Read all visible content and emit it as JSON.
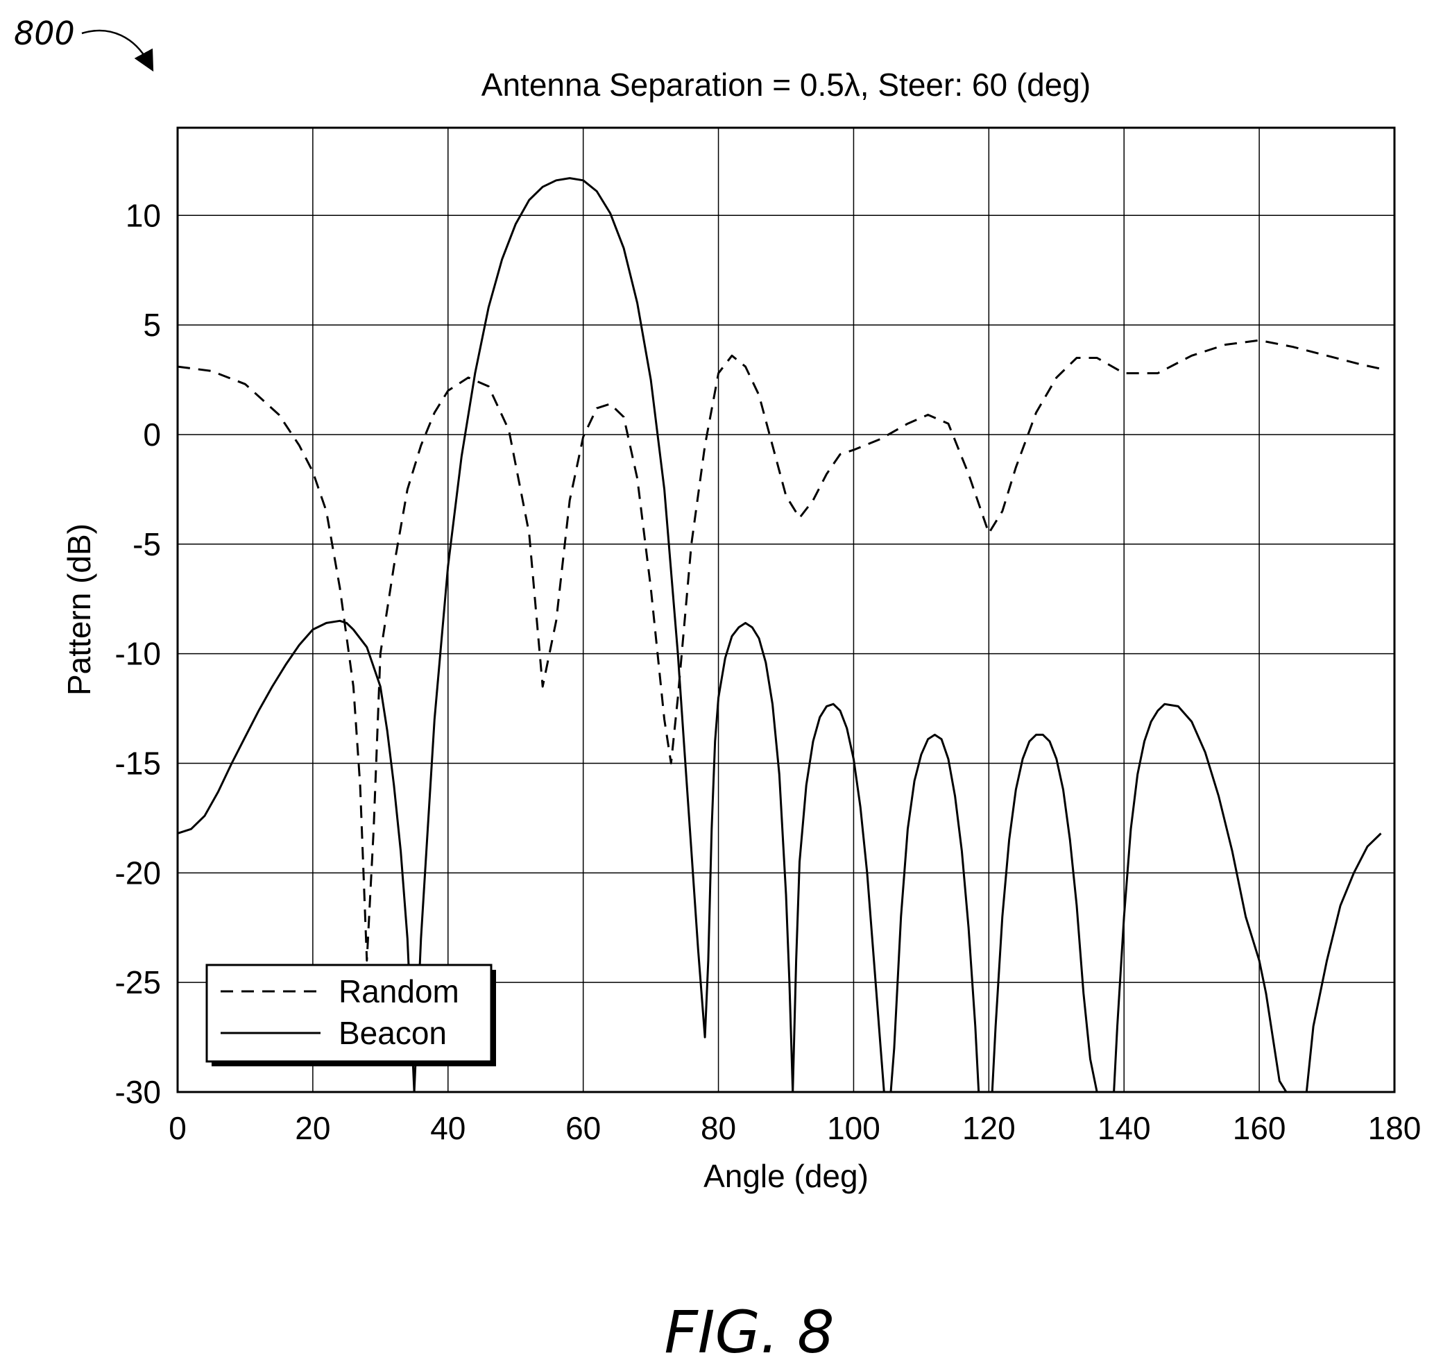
{
  "figure": {
    "ref_number": "800",
    "caption": "FIG. 8"
  },
  "chart_data": {
    "type": "line",
    "title": "Antenna Separation = 0.5λ, Steer: 60 (deg)",
    "xlabel": "Angle (deg)",
    "ylabel": "Pattern (dB)",
    "xlim": [
      0,
      180
    ],
    "ylim": [
      -30,
      14
    ],
    "xticks": [
      0,
      20,
      40,
      60,
      80,
      100,
      120,
      140,
      160,
      180
    ],
    "yticks": [
      10,
      5,
      0,
      -5,
      -10,
      -15,
      -20,
      -25,
      -30
    ],
    "grid": true,
    "legend": {
      "placement": "lower-left",
      "entries": [
        {
          "name": "Random",
          "style": "dashed"
        },
        {
          "name": "Beacon",
          "style": "solid"
        }
      ]
    },
    "series": [
      {
        "name": "Random",
        "style": "dashed",
        "x": [
          0,
          5,
          10,
          15,
          18,
          20,
          22,
          24,
          26,
          27,
          28,
          29,
          30,
          32,
          34,
          36,
          38,
          40,
          43,
          46,
          49,
          52,
          54,
          56,
          58,
          60,
          62,
          64,
          66,
          68,
          70,
          72,
          73,
          74,
          76,
          78,
          80,
          82,
          84,
          86,
          88,
          90,
          92,
          94,
          96,
          98,
          100,
          104,
          108,
          111,
          114,
          117,
          120,
          122,
          124,
          127,
          130,
          133,
          136,
          140,
          145,
          150,
          155,
          160,
          165,
          170,
          175,
          178
        ],
        "y": [
          3.1,
          2.9,
          2.3,
          0.9,
          -0.5,
          -1.7,
          -3.5,
          -7.0,
          -11.5,
          -16.0,
          -24.0,
          -18.0,
          -10.0,
          -6.0,
          -2.5,
          -0.5,
          1.0,
          2.0,
          2.6,
          2.2,
          0.2,
          -4.5,
          -11.5,
          -8.5,
          -3.0,
          -0.1,
          1.2,
          1.4,
          0.8,
          -2.0,
          -7.0,
          -13.0,
          -15.0,
          -12.0,
          -5.0,
          -0.5,
          2.8,
          3.6,
          3.1,
          1.8,
          -0.5,
          -2.8,
          -3.8,
          -3.0,
          -1.8,
          -0.9,
          -0.7,
          -0.2,
          0.5,
          0.9,
          0.5,
          -1.8,
          -4.5,
          -3.5,
          -1.5,
          1.0,
          2.6,
          3.5,
          3.5,
          2.8,
          2.8,
          3.6,
          4.1,
          4.3,
          4.0,
          3.6,
          3.2,
          3.0
        ]
      },
      {
        "name": "Beacon",
        "style": "solid",
        "x": [
          0,
          2,
          4,
          6,
          8,
          10,
          12,
          14,
          16,
          18,
          20,
          22,
          24,
          25,
          26,
          28,
          30,
          31,
          32,
          33,
          34,
          35,
          36,
          38,
          40,
          42,
          44,
          46,
          48,
          50,
          52,
          54,
          56,
          58,
          60,
          62,
          64,
          66,
          68,
          70,
          72,
          74,
          75,
          76,
          77,
          78,
          78.5,
          79,
          79.5,
          80,
          81,
          82,
          83,
          84,
          85,
          86,
          87,
          88,
          89,
          90,
          90.5,
          91,
          91.5,
          92,
          93,
          94,
          95,
          96,
          97,
          98,
          99,
          100,
          101,
          102,
          103,
          104,
          104.5,
          105,
          105.5,
          106,
          107,
          108,
          109,
          110,
          111,
          112,
          113,
          114,
          115,
          116,
          117,
          118,
          118.5,
          119,
          120,
          120.5,
          121,
          122,
          123,
          124,
          125,
          126,
          127,
          128,
          129,
          130,
          131,
          132,
          133,
          134,
          135,
          136,
          136.5,
          137,
          138,
          138.5,
          139,
          140,
          141,
          142,
          143,
          144,
          145,
          146,
          148,
          150,
          152,
          154,
          156,
          158,
          160,
          161,
          162,
          163,
          164,
          165,
          166,
          167,
          168,
          170,
          172,
          174,
          176,
          178
        ],
        "y": [
          -18.2,
          -18.0,
          -17.4,
          -16.3,
          -15.0,
          -13.8,
          -12.6,
          -11.5,
          -10.5,
          -9.6,
          -8.9,
          -8.6,
          -8.5,
          -8.6,
          -8.9,
          -9.7,
          -11.5,
          -13.5,
          -16.0,
          -19.0,
          -23.0,
          -30.0,
          -23.0,
          -13.0,
          -6.0,
          -1.0,
          2.8,
          5.8,
          8.0,
          9.6,
          10.7,
          11.3,
          11.6,
          11.7,
          11.6,
          11.1,
          10.1,
          8.5,
          6.0,
          2.5,
          -2.5,
          -10.0,
          -14.5,
          -19.0,
          -23.5,
          -27.5,
          -24.0,
          -18.0,
          -14.0,
          -12.0,
          -10.2,
          -9.2,
          -8.8,
          -8.6,
          -8.8,
          -9.3,
          -10.4,
          -12.3,
          -15.5,
          -21.0,
          -25.0,
          -30.0,
          -24.0,
          -19.5,
          -16.0,
          -14.0,
          -12.9,
          -12.4,
          -12.3,
          -12.6,
          -13.4,
          -14.8,
          -17.0,
          -20.0,
          -24.0,
          -28.0,
          -30.0,
          -30.0,
          -30.0,
          -28.0,
          -22.0,
          -18.0,
          -15.8,
          -14.6,
          -13.9,
          -13.7,
          -13.9,
          -14.8,
          -16.5,
          -19.0,
          -22.5,
          -27.0,
          -30.0,
          -30.0,
          -30.0,
          -30.0,
          -27.0,
          -22.0,
          -18.5,
          -16.2,
          -14.8,
          -14.0,
          -13.7,
          -13.7,
          -14.0,
          -14.8,
          -16.2,
          -18.5,
          -21.5,
          -25.5,
          -28.5,
          -30.0,
          -30.0,
          -30.0,
          -30.0,
          -30.0,
          -27.0,
          -22.0,
          -18.0,
          -15.5,
          -14.0,
          -13.1,
          -12.6,
          -12.3,
          -12.4,
          -13.1,
          -14.5,
          -16.5,
          -19.0,
          -22.0,
          -24.0,
          -25.5,
          -27.5,
          -29.5,
          -30.0,
          -30.0,
          -30.0,
          -30.0,
          -27.0,
          -24.0,
          -21.5,
          -20.0,
          -18.8,
          -18.2
        ]
      }
    ]
  }
}
